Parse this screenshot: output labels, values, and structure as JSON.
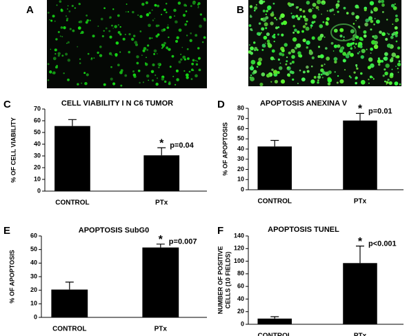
{
  "images": [
    {
      "panel": "A"
    },
    {
      "panel": "B"
    }
  ],
  "chart_data": [
    {
      "type": "bar",
      "panel": "C",
      "title": "CELL VIABILITY I N C6 TUMOR",
      "ylabel": [
        "% OF CELL VIABILITY"
      ],
      "categories": [
        "CONTROL",
        "PTx"
      ],
      "values": [
        55.5,
        30.5
      ],
      "errors": [
        5.5,
        6.5
      ],
      "color": "#000000",
      "ylim": [
        0,
        70
      ],
      "yticks": [
        0,
        10,
        20,
        30,
        40,
        50,
        60,
        70
      ],
      "annotations": [
        "*",
        "p=0.04"
      ]
    },
    {
      "type": "bar",
      "panel": "D",
      "title": "APOPTOSIS ANEXINA V",
      "ylabel": [
        "% OF APOPTOSIS"
      ],
      "categories": [
        "CONTROL",
        "PTx"
      ],
      "values": [
        42.5,
        68
      ],
      "errors": [
        6,
        7
      ],
      "color": "#000000",
      "ylim": [
        0,
        80
      ],
      "yticks": [
        0,
        10,
        20,
        30,
        40,
        50,
        60,
        70,
        80
      ],
      "annotations": [
        "*",
        "p=0.01"
      ]
    },
    {
      "type": "bar",
      "panel": "E",
      "title": "APOPTOSIS SubG0",
      "ylabel": [
        "% OF APOPTOSIS"
      ],
      "categories": [
        "CONTROL",
        "PTx"
      ],
      "values": [
        20.5,
        51.5
      ],
      "errors": [
        5.5,
        2.5
      ],
      "color": "#000000",
      "ylim": [
        0,
        60
      ],
      "yticks": [
        0,
        10,
        20,
        30,
        40,
        50,
        60
      ],
      "annotations": [
        "*",
        "p=0.007"
      ]
    },
    {
      "type": "bar",
      "panel": "F",
      "title": "APOPTOSIS TUNEL",
      "ylabel": [
        "NUMBER OF POSITIVE",
        "CELLS (10 FIELDS)"
      ],
      "categories": [
        "CONTROL",
        "PTx"
      ],
      "values": [
        9,
        97
      ],
      "errors": [
        3,
        27
      ],
      "color": "#000000",
      "ylim": [
        0,
        140
      ],
      "yticks": [
        0,
        20,
        40,
        60,
        80,
        100,
        120,
        140
      ],
      "annotations": [
        "*",
        "p<0.001"
      ]
    }
  ]
}
